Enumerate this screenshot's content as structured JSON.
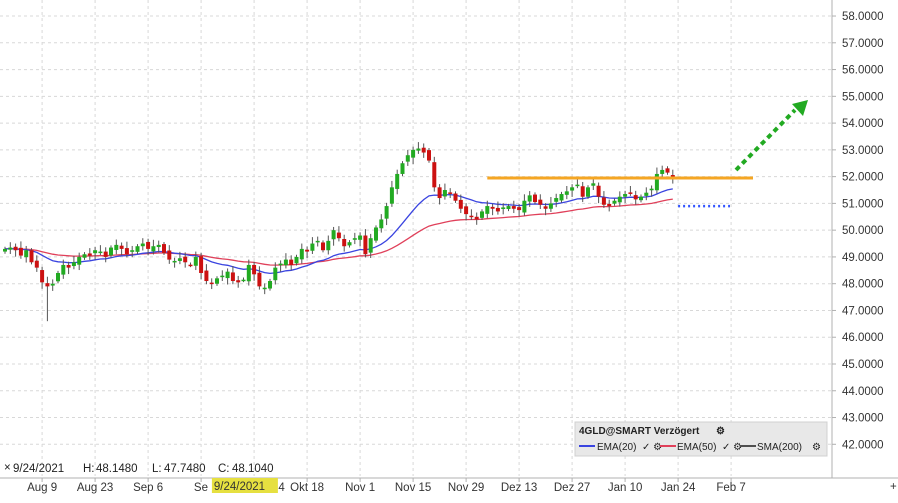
{
  "chart_data": {
    "type": "candlestick",
    "instrument": "4GLD@SMART Verzögert",
    "ylim": [
      41.6,
      58.3
    ],
    "yticks": [
      "58.0000",
      "57.0000",
      "56.0000",
      "55.0000",
      "54.0000",
      "53.0000",
      "52.0000",
      "51.0000",
      "50.0000",
      "49.0000",
      "48.0000",
      "47.0000",
      "46.0000",
      "45.0000",
      "44.0000",
      "43.0000",
      "42.0000"
    ],
    "ytick_values": [
      58,
      57,
      56,
      55,
      54,
      53,
      52,
      51,
      50,
      49,
      48,
      47,
      46,
      45,
      44,
      43,
      42
    ],
    "xticks": [
      {
        "label": "Aug 9",
        "index": 7
      },
      {
        "label": "Aug 23",
        "index": 17
      },
      {
        "label": "Sep 6",
        "index": 27
      },
      {
        "label": "Se",
        "index": 37
      },
      {
        "label": "t 4",
        "index": 47
      },
      {
        "label": "Okt 18",
        "index": 57
      },
      {
        "label": "Nov 1",
        "index": 67
      },
      {
        "label": "Nov 15",
        "index": 77
      },
      {
        "label": "Nov 29",
        "index": 87
      },
      {
        "label": "Dez 13",
        "index": 97
      },
      {
        "label": "Dez 27",
        "index": 107
      },
      {
        "label": "Jan 10",
        "index": 117
      },
      {
        "label": "Jan 24",
        "index": 127
      },
      {
        "label": "Feb 7",
        "index": 137
      }
    ],
    "crosshair_date": "9/24/2021",
    "crosshair_index": 43,
    "info": {
      "date": "9/24/2021",
      "high_label": "H:",
      "high": "48.1480",
      "low_label": "L:",
      "low": "47.7480",
      "close_label": "C:",
      "close": "48.1040"
    },
    "close": [
      49.3,
      49.35,
      49.25,
      49.05,
      49.25,
      48.8,
      48.6,
      48.05,
      47.9,
      48.0,
      48.4,
      48.7,
      48.6,
      48.8,
      49.0,
      49.1,
      49.05,
      49.25,
      49.2,
      49.0,
      49.35,
      49.45,
      49.3,
      49.1,
      49.25,
      49.4,
      49.5,
      49.3,
      49.4,
      49.45,
      49.15,
      48.9,
      48.85,
      48.95,
      48.8,
      48.7,
      49.0,
      48.4,
      48.1,
      48.0,
      48.2,
      48.3,
      48.45,
      48.1,
      48.05,
      48.15,
      48.7,
      48.35,
      47.9,
      47.85,
      48.1,
      48.6,
      48.75,
      48.9,
      48.7,
      49.0,
      49.3,
      49.2,
      49.5,
      49.6,
      49.25,
      49.6,
      50.0,
      49.7,
      49.4,
      49.55,
      49.7,
      49.8,
      49.1,
      49.7,
      50.1,
      50.4,
      50.9,
      51.6,
      52.1,
      52.5,
      52.8,
      53.0,
      53.05,
      52.9,
      52.6,
      51.6,
      51.2,
      51.5,
      51.4,
      51.1,
      50.8,
      50.6,
      50.5,
      50.4,
      50.7,
      50.9,
      50.8,
      50.7,
      50.85,
      50.9,
      50.8,
      50.75,
      51.1,
      51.3,
      51.05,
      50.95,
      50.8,
      51.0,
      51.2,
      51.35,
      51.45,
      51.6,
      51.7,
      51.25,
      51.6,
      51.75,
      51.25,
      50.95,
      50.9,
      51.1,
      51.25,
      51.35,
      51.4,
      51.15,
      51.25,
      51.4,
      51.55,
      52.1,
      52.25,
      52.15,
      51.9
    ],
    "ohlc_note": "",
    "series": [
      {
        "name": "EMA(20)",
        "color": "#3a44e0"
      },
      {
        "name": "EMA(50)",
        "color": "#e0405a"
      },
      {
        "name": "SMA(200)",
        "color": "#505050"
      }
    ],
    "resistance_level": 51.95,
    "support_level": 50.9,
    "colors": {
      "up": "#22aa22",
      "down": "#cc1111",
      "resistance": "#f5a623",
      "support": "#3355ff",
      "arrow": "#22aa22",
      "highlight": "#e6e040",
      "axis": "#b0b0b0"
    },
    "legend_placement": "bottom-right",
    "grid": true
  }
}
